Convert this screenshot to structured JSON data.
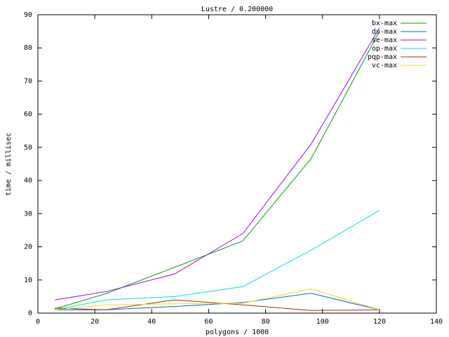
{
  "chart_data": {
    "type": "line",
    "title": "Lustre / 0.200000",
    "x_label": "polygons / 1000",
    "y_label": "time / millisec",
    "x": [
      6,
      24,
      48,
      72,
      96,
      120
    ],
    "series": [
      {
        "name": "bx-max",
        "color": "#00a000",
        "values": [
          1.3,
          5.9,
          13.8,
          21.8,
          46.6,
          85
        ]
      },
      {
        "name": "do-max",
        "color": "#0060ff",
        "values": [
          1,
          1,
          2,
          3.2,
          6,
          1
        ]
      },
      {
        "name": "se-max",
        "color": "#a000ff",
        "values": [
          4,
          6.5,
          11.8,
          24,
          51,
          86
        ]
      },
      {
        "name": "op-max",
        "color": "#00e0e0",
        "values": [
          1,
          4,
          5,
          8,
          19,
          31
        ]
      },
      {
        "name": "pqp-max",
        "color": "#a03000",
        "values": [
          1.5,
          1,
          4,
          2.5,
          0.8,
          1
        ]
      },
      {
        "name": "vc-max",
        "color": "#f0e000",
        "values": [
          1,
          2.5,
          2.8,
          3,
          7.3,
          1
        ]
      }
    ],
    "xlim": [
      0,
      140
    ],
    "xticks": [
      0,
      20,
      40,
      60,
      80,
      100,
      120,
      140
    ],
    "ylim": [
      0,
      90
    ],
    "yticks": [
      0,
      10,
      20,
      30,
      40,
      50,
      60,
      70,
      80,
      90
    ],
    "legend": "top-right"
  }
}
